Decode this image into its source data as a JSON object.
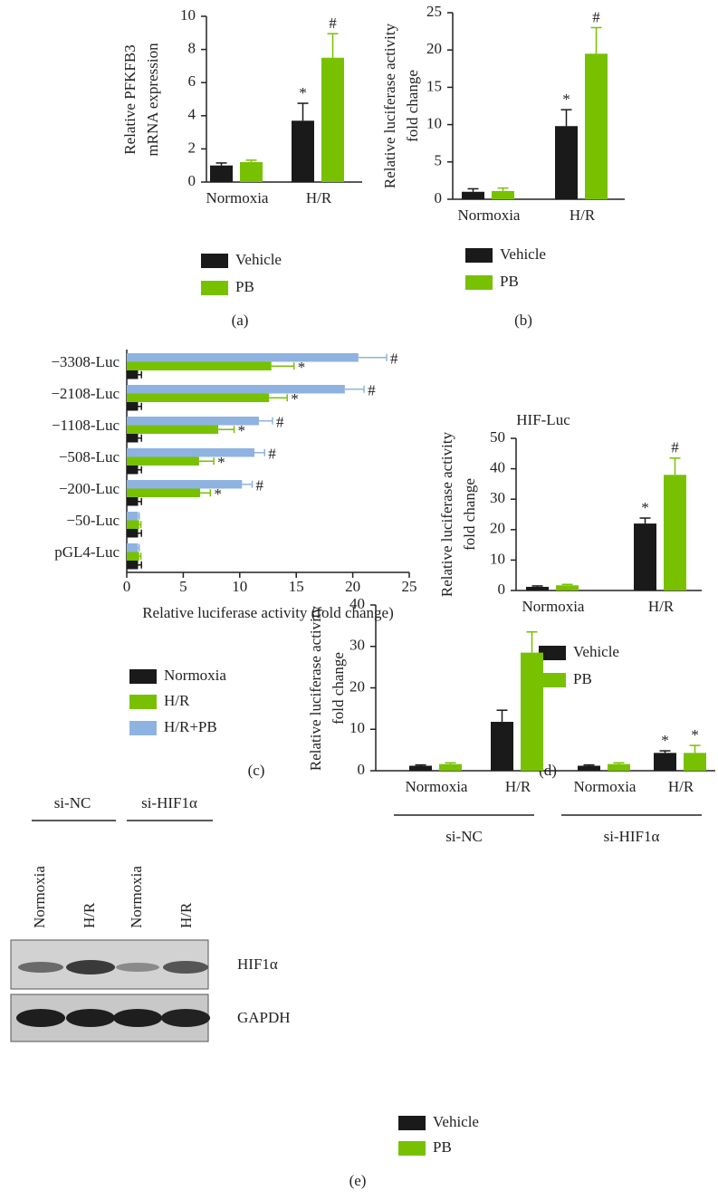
{
  "chart_data": [
    {
      "type": "bar",
      "panel": "(a)",
      "ylabel": [
        "Relative PFKFB3",
        "mRNA expression"
      ],
      "categories": [
        "Normoxia",
        "H/R"
      ],
      "series": [
        {
          "name": "Vehicle",
          "color": "#1a1a1a",
          "values": [
            1.0,
            3.7
          ],
          "errors": [
            0.15,
            1.05
          ],
          "significance": [
            null,
            "*"
          ]
        },
        {
          "name": "PB",
          "color": "#77c100",
          "values": [
            1.2,
            7.5
          ],
          "errors": [
            0.12,
            1.45
          ],
          "significance": [
            null,
            "#"
          ]
        }
      ],
      "ylim": [
        0,
        10
      ],
      "yticks": [
        0,
        2,
        4,
        6,
        8,
        10
      ]
    },
    {
      "type": "bar",
      "panel": "(b)",
      "ylabel": [
        "Relative luciferase activity",
        "fold change"
      ],
      "categories": [
        "Normoxia",
        "H/R"
      ],
      "series": [
        {
          "name": "Vehicle",
          "color": "#1a1a1a",
          "values": [
            1.0,
            9.8
          ],
          "errors": [
            0.4,
            2.2
          ],
          "significance": [
            null,
            "*"
          ]
        },
        {
          "name": "PB",
          "color": "#77c100",
          "values": [
            1.1,
            19.5
          ],
          "errors": [
            0.4,
            3.5
          ],
          "significance": [
            null,
            "#"
          ]
        }
      ],
      "ylim": [
        0,
        25
      ],
      "yticks": [
        0,
        5,
        10,
        15,
        20,
        25
      ]
    },
    {
      "type": "bar",
      "orientation": "horizontal",
      "panel": "(c)",
      "xlabel": "Relative luciferase activity (fold change)",
      "categories": [
        "−3308-Luc",
        "−2108-Luc",
        "−1108-Luc",
        "−508-Luc",
        "−200-Luc",
        "−50-Luc",
        "pGL4-Luc"
      ],
      "series": [
        {
          "name": "Normoxia",
          "color": "#1a1a1a",
          "values": [
            1.0,
            1.0,
            1.0,
            1.0,
            1.0,
            1.0,
            1.0
          ],
          "errors": [
            0.3,
            0.3,
            0.3,
            0.3,
            0.3,
            0.3,
            0.3
          ],
          "significance": [
            null,
            null,
            null,
            null,
            null,
            null,
            null
          ]
        },
        {
          "name": "H/R",
          "color": "#77c100",
          "values": [
            12.8,
            12.6,
            8.1,
            6.4,
            6.5,
            1.1,
            1.1
          ],
          "errors": [
            2.0,
            1.6,
            1.4,
            1.3,
            0.9,
            0.15,
            0.15
          ],
          "significance": [
            "*",
            "*",
            "*",
            "*",
            "*",
            null,
            null
          ]
        },
        {
          "name": "H/R+PB",
          "color": "#8fb3e0",
          "values": [
            20.5,
            19.3,
            11.7,
            11.3,
            10.2,
            1.0,
            1.0
          ],
          "errors": [
            2.5,
            1.7,
            1.2,
            0.9,
            0.9,
            0.1,
            0.1
          ],
          "significance": [
            "#",
            "#",
            "#",
            "#",
            "#",
            null,
            null
          ]
        }
      ],
      "xlim": [
        0,
        25
      ],
      "xticks": [
        0,
        5,
        10,
        15,
        20,
        25
      ]
    },
    {
      "type": "bar",
      "panel": "(d)",
      "title": "HIF-Luc",
      "ylabel": [
        "Relative luciferase activity",
        "fold change"
      ],
      "categories": [
        "Normoxia",
        "H/R"
      ],
      "series": [
        {
          "name": "Vehicle",
          "color": "#1a1a1a",
          "values": [
            1.2,
            22
          ],
          "errors": [
            0.3,
            1.8
          ],
          "significance": [
            null,
            "*"
          ]
        },
        {
          "name": "PB",
          "color": "#77c100",
          "values": [
            1.7,
            38
          ],
          "errors": [
            0.3,
            5.5
          ],
          "significance": [
            null,
            "#"
          ]
        }
      ],
      "ylim": [
        0,
        50
      ],
      "yticks": [
        0,
        10,
        20,
        30,
        40,
        50
      ]
    },
    {
      "type": "bar",
      "panel": "(e)",
      "ylabel": [
        "Relative luciferase activity",
        "fold change"
      ],
      "categories": [
        "Normoxia",
        "H/R",
        "Normoxia",
        "H/R"
      ],
      "groups": [
        "si-NC",
        "si-HIF1α"
      ],
      "series": [
        {
          "name": "Vehicle",
          "color": "#1a1a1a",
          "values": [
            1.2,
            11.8,
            1.2,
            4.3
          ],
          "errors": [
            0.2,
            2.8,
            0.2,
            0.5
          ],
          "significance": [
            null,
            null,
            null,
            "*"
          ]
        },
        {
          "name": "PB",
          "color": "#77c100",
          "values": [
            1.6,
            28.5,
            1.6,
            4.3
          ],
          "errors": [
            0.3,
            5.0,
            0.3,
            1.8
          ],
          "significance": [
            null,
            null,
            null,
            "*"
          ]
        }
      ],
      "ylim": [
        0,
        40
      ],
      "yticks": [
        0,
        10,
        20,
        30,
        40
      ]
    }
  ],
  "blot": {
    "groups": [
      "si-NC",
      "si-HIF1α"
    ],
    "lanes": [
      "Normoxia",
      "H/R",
      "Normoxia",
      "H/R"
    ],
    "rows": [
      "HIF1α",
      "GAPDH"
    ]
  }
}
